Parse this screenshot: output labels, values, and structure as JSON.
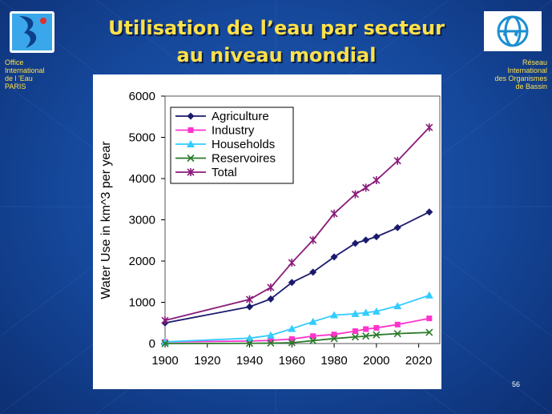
{
  "slide": {
    "title_line_1": "Utilisation de l’eau par secteur",
    "title_line_2": "au niveau mondial",
    "page_number": "56"
  },
  "left_org": {
    "lines": [
      "Office",
      "International",
      "de l 'Eau",
      "PARIS"
    ]
  },
  "right_org": {
    "lines": [
      "Réseau",
      "International",
      "des Organismes",
      "de Bassin"
    ]
  },
  "colors": {
    "background": "#15479a",
    "title": "#ffe14a",
    "agriculture": "#1a1a6e",
    "industry": "#ff33cc",
    "households": "#33ccff",
    "reservoires": "#2a7a2a",
    "total": "#8a1a7a"
  },
  "chart_data": {
    "type": "line",
    "xlabel": "",
    "ylabel": "Water Use in km^3 per year",
    "xlim": [
      1900,
      2030
    ],
    "ylim": [
      0,
      6000
    ],
    "x_ticks": [
      1900,
      1920,
      1940,
      1960,
      1980,
      2000,
      2020
    ],
    "y_ticks": [
      0,
      1000,
      2000,
      3000,
      4000,
      5000,
      6000
    ],
    "legend_position": "top-left",
    "series": [
      {
        "name": "Agriculture",
        "marker": "diamond",
        "x": [
          1900,
          1940,
          1950,
          1960,
          1970,
          1980,
          1990,
          1995,
          2000,
          2010,
          2025
        ],
        "values": [
          500,
          890,
          1080,
          1480,
          1730,
          2100,
          2430,
          2510,
          2590,
          2810,
          3190
        ]
      },
      {
        "name": "Industry",
        "marker": "square",
        "x": [
          1900,
          1940,
          1950,
          1960,
          1970,
          1980,
          1990,
          1995,
          2000,
          2010,
          2025
        ],
        "values": [
          40,
          60,
          75,
          110,
          180,
          220,
          300,
          350,
          380,
          460,
          610
        ]
      },
      {
        "name": "Households",
        "marker": "triangle",
        "x": [
          1900,
          1940,
          1950,
          1960,
          1970,
          1980,
          1990,
          1995,
          2000,
          2010,
          2025
        ],
        "values": [
          40,
          130,
          200,
          360,
          530,
          690,
          720,
          750,
          780,
          910,
          1170
        ]
      },
      {
        "name": "Reservoires",
        "marker": "x",
        "x": [
          1900,
          1940,
          1950,
          1960,
          1970,
          1980,
          1990,
          1995,
          2000,
          2010,
          2025
        ],
        "values": [
          0,
          5,
          10,
          20,
          70,
          120,
          160,
          180,
          210,
          240,
          270
        ]
      },
      {
        "name": "Total",
        "marker": "star",
        "x": [
          1900,
          1940,
          1950,
          1960,
          1970,
          1980,
          1990,
          1995,
          2000,
          2010,
          2025
        ],
        "values": [
          560,
          1070,
          1360,
          1960,
          2510,
          3150,
          3620,
          3780,
          3960,
          4430,
          5240
        ]
      }
    ]
  }
}
